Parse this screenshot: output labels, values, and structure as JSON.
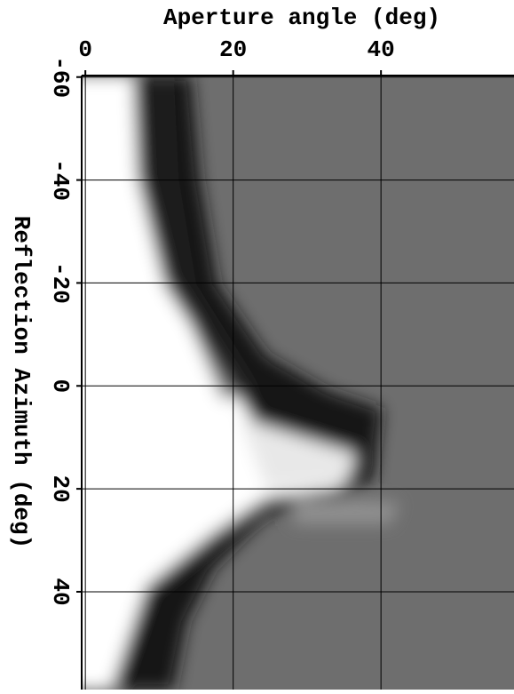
{
  "chart_data": {
    "type": "image",
    "xlabel": "Aperture angle (deg)",
    "ylabel": "Reflection Azimuth (deg)",
    "xlim": [
      -0.5,
      58
    ],
    "xticks": [
      0,
      20,
      40
    ],
    "ylim": [
      -60.3,
      59
    ],
    "yticks": [
      -60,
      -40,
      -20,
      0,
      20,
      40
    ],
    "grid": true
  }
}
